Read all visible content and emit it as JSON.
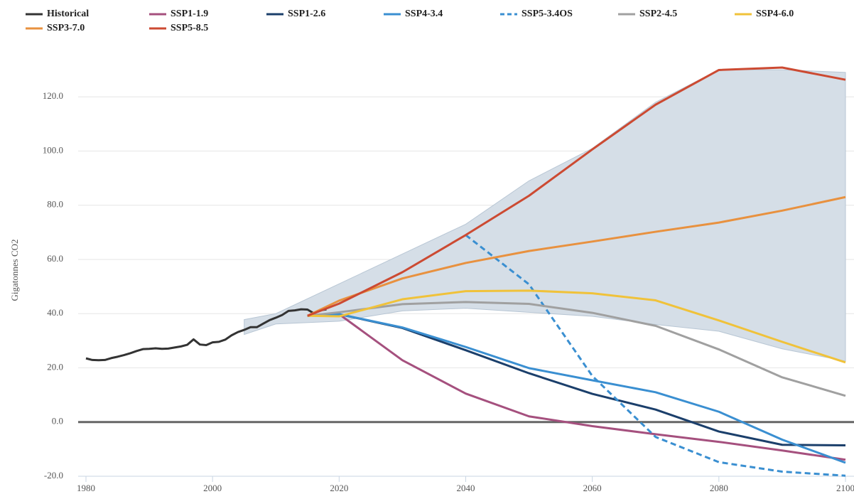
{
  "chart_data": {
    "type": "line",
    "ylabel": "Gigatonnes CO2",
    "xlim": [
      1980,
      2100
    ],
    "xticks": [
      1980,
      2000,
      2020,
      2040,
      2060,
      2080,
      2100
    ],
    "ylim": [
      -20,
      135
    ],
    "yticks": [
      {
        "value": -20,
        "label": "-20.0"
      },
      {
        "value": 0,
        "label": "0.0"
      },
      {
        "value": 20,
        "label": "20.0"
      },
      {
        "value": 40,
        "label": "40.0"
      },
      {
        "value": 60,
        "label": "60.0"
      },
      {
        "value": 80,
        "label": "80.0"
      },
      {
        "value": 100,
        "label": "100.0"
      },
      {
        "value": 120,
        "label": "120.0"
      }
    ],
    "grid": true,
    "range": {
      "color": "#d5dee7",
      "x": [
        2005,
        2010,
        2020,
        2030,
        2040,
        2050,
        2060,
        2070,
        2080,
        2090,
        2100
      ],
      "low": [
        32.3,
        36.2,
        37.2,
        41,
        42,
        40.5,
        39,
        36,
        33.5,
        27,
        22.5
      ],
      "high": [
        37.8,
        40,
        51,
        62,
        73,
        89,
        101,
        118,
        130,
        130,
        129
      ]
    },
    "series": [
      {
        "name": "Historical",
        "color": "#333333",
        "x": [
          1980,
          1981,
          1982,
          1983,
          1984,
          1985,
          1986,
          1987,
          1988,
          1989,
          1990,
          1991,
          1992,
          1993,
          1994,
          1995,
          1996,
          1997,
          1998,
          1999,
          2000,
          2001,
          2002,
          2003,
          2004,
          2005,
          2006,
          2007,
          2008,
          2009,
          2010,
          2011,
          2012,
          2013,
          2014,
          2015,
          2016,
          2017,
          2018
        ],
        "values": [
          23.5,
          22.9,
          22.8,
          22.9,
          23.6,
          24.1,
          24.7,
          25.4,
          26.2,
          26.9,
          27.0,
          27.2,
          27.0,
          27.1,
          27.5,
          27.9,
          28.5,
          30.5,
          28.6,
          28.4,
          29.4,
          29.6,
          30.4,
          32.0,
          33.2,
          34.0,
          35.0,
          35.0,
          36.3,
          37.6,
          38.5,
          39.5,
          41.0,
          41.2,
          41.6,
          41.5,
          40.1,
          41.2,
          41.6
        ]
      },
      {
        "name": "SSP1-1.9",
        "color": "#a5507e",
        "x": [
          2015,
          2020,
          2030,
          2040,
          2050,
          2060,
          2070,
          2080,
          2090,
          2100
        ],
        "values": [
          39.2,
          39.8,
          22.8,
          10.5,
          2.1,
          -1.5,
          -4.5,
          -7.3,
          -10.5,
          -13.9
        ]
      },
      {
        "name": "SSP1-2.6",
        "color": "#1b3f6b",
        "x": [
          2015,
          2020,
          2030,
          2040,
          2050,
          2060,
          2070,
          2080,
          2090,
          2100
        ],
        "values": [
          39.2,
          39.8,
          34.7,
          26.5,
          18.0,
          10.4,
          4.6,
          -3.5,
          -8.4,
          -8.6
        ]
      },
      {
        "name": "SSP4-3.4",
        "color": "#3a8fd1",
        "x": [
          2015,
          2020,
          2030,
          2040,
          2050,
          2060,
          2070,
          2080,
          2090,
          2100
        ],
        "values": [
          39.2,
          39.8,
          34.9,
          27.7,
          19.9,
          15.4,
          11.0,
          3.8,
          -6.5,
          -15.0
        ]
      },
      {
        "name": "SSP5-3.4OS",
        "color": "#3a8fd1",
        "dash": true,
        "x": [
          2040,
          2050,
          2060,
          2070,
          2080,
          2090,
          2100
        ],
        "values": [
          69.0,
          50.8,
          17.0,
          -5.5,
          -14.8,
          -18.3,
          -19.8
        ]
      },
      {
        "name": "SSP2-4.5",
        "color": "#a0a0a0",
        "x": [
          2015,
          2020,
          2030,
          2040,
          2050,
          2060,
          2070,
          2080,
          2090,
          2100
        ],
        "values": [
          39.2,
          40.5,
          43.5,
          44.3,
          43.6,
          40.3,
          35.5,
          26.8,
          16.5,
          9.7
        ]
      },
      {
        "name": "SSP4-6.0",
        "color": "#f0c23a",
        "x": [
          2015,
          2020,
          2030,
          2040,
          2050,
          2060,
          2070,
          2080,
          2090,
          2100
        ],
        "values": [
          39.2,
          39.0,
          45.3,
          48.3,
          48.5,
          47.5,
          44.9,
          37.5,
          29.6,
          22.0
        ]
      },
      {
        "name": "SSP3-7.0",
        "color": "#e8913f",
        "x": [
          2015,
          2020,
          2030,
          2040,
          2050,
          2060,
          2070,
          2080,
          2090,
          2100
        ],
        "values": [
          39.2,
          44.8,
          53.0,
          58.7,
          63.1,
          66.6,
          70.2,
          73.6,
          78.0,
          83.0
        ]
      },
      {
        "name": "SSP5-8.5",
        "color": "#cc4a32",
        "x": [
          2015,
          2020,
          2030,
          2040,
          2050,
          2060,
          2070,
          2080,
          2090,
          2100
        ],
        "values": [
          39.2,
          43.7,
          55.3,
          69.0,
          83.5,
          100.6,
          117.1,
          129.9,
          130.8,
          126.3
        ]
      }
    ]
  }
}
